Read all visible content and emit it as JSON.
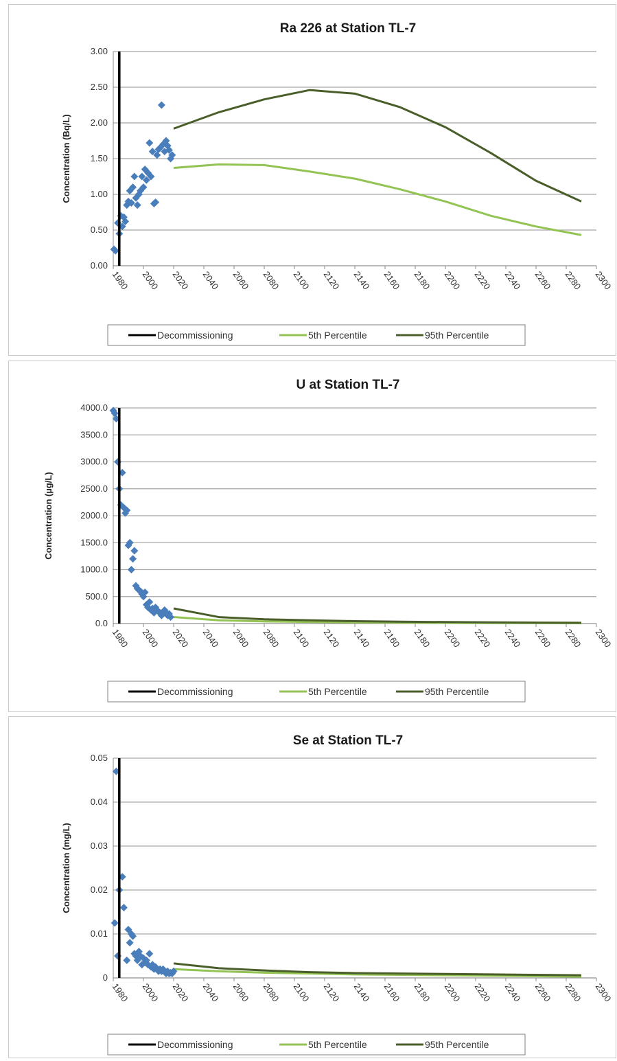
{
  "chart_data": [
    {
      "type": "scatter",
      "title": "Ra 226 at Station TL-7",
      "ylabel": "Concentration (Bq/L)",
      "xlabel": "",
      "xlim": [
        1980,
        2300
      ],
      "ylim": [
        0,
        3
      ],
      "x_ticks": [
        "1980",
        "2000",
        "2020",
        "2040",
        "2060",
        "2080",
        "2100",
        "2120",
        "2140",
        "2160",
        "2180",
        "2200",
        "2220",
        "2240",
        "2260",
        "2280",
        "2300"
      ],
      "y_ticks": [
        "0.00",
        "0.50",
        "1.00",
        "1.50",
        "2.00",
        "2.50",
        "3.00"
      ],
      "grid": true,
      "legend_position": "bottom",
      "decommissioning_year": 1984,
      "legend": [
        "Decommissioning",
        "5th Percentile",
        "95th Percentile"
      ],
      "series": [
        {
          "name": "Decommissioning",
          "type": "vline",
          "x": 1984,
          "color": "#000000"
        },
        {
          "name": "5th Percentile",
          "type": "line",
          "color": "#92c353",
          "x": [
            2020,
            2050,
            2080,
            2110,
            2140,
            2170,
            2200,
            2230,
            2260,
            2290
          ],
          "y": [
            1.37,
            1.42,
            1.41,
            1.32,
            1.22,
            1.07,
            0.9,
            0.7,
            0.55,
            0.43
          ]
        },
        {
          "name": "95th Percentile",
          "type": "line",
          "color": "#4a5e2a",
          "x": [
            2020,
            2050,
            2080,
            2110,
            2140,
            2170,
            2200,
            2230,
            2260,
            2290
          ],
          "y": [
            1.92,
            2.15,
            2.33,
            2.46,
            2.41,
            2.22,
            1.94,
            1.58,
            1.19,
            0.9
          ]
        },
        {
          "type": "scatter",
          "color": "#4a7ebb",
          "x": [
            1980.5,
            1981.5,
            1983,
            1984,
            1985,
            1986,
            1987,
            1988,
            1989,
            1990,
            1991,
            1992,
            1993,
            1994,
            1995,
            1996,
            1997,
            1998,
            1999,
            2000,
            2001,
            2002,
            2003,
            2004,
            2005,
            2006,
            2007,
            2008,
            2009,
            2010,
            2011,
            2012,
            2013,
            2014,
            2015,
            2016,
            2017,
            2018,
            2019
          ],
          "y": [
            0.23,
            0.21,
            0.6,
            0.45,
            0.7,
            0.55,
            0.68,
            0.62,
            0.85,
            0.9,
            1.05,
            0.88,
            1.1,
            1.25,
            0.95,
            0.85,
            1.0,
            1.05,
            1.25,
            1.1,
            1.35,
            1.2,
            1.3,
            1.72,
            1.25,
            1.6,
            0.87,
            0.89,
            1.55,
            1.63,
            1.65,
            2.25,
            1.7,
            1.6,
            1.75,
            1.68,
            1.62,
            1.5,
            1.55
          ]
        }
      ]
    },
    {
      "type": "scatter",
      "title": "U at Station TL-7",
      "ylabel": "Concentration (µg/L)",
      "xlabel": "",
      "xlim": [
        1980,
        2300
      ],
      "ylim": [
        0,
        4000
      ],
      "x_ticks": [
        "1980",
        "2000",
        "2020",
        "2040",
        "2060",
        "2080",
        "2100",
        "2120",
        "2140",
        "2160",
        "2180",
        "2200",
        "2220",
        "2240",
        "2260",
        "2280",
        "2300"
      ],
      "y_ticks": [
        "0.0",
        "500.0",
        "1000.0",
        "1500.0",
        "2000.0",
        "2500.0",
        "3000.0",
        "3500.0",
        "4000.0"
      ],
      "grid": true,
      "legend_position": "bottom",
      "decommissioning_year": 1984,
      "legend": [
        "Decommissioning",
        "5th Percentile",
        "95th Percentile"
      ],
      "series": [
        {
          "name": "Decommissioning",
          "type": "vline",
          "x": 1984,
          "color": "#000000"
        },
        {
          "name": "5th Percentile",
          "type": "line",
          "color": "#92c353",
          "x": [
            2020,
            2050,
            2080,
            2110,
            2140,
            2170,
            2200,
            2230,
            2260,
            2290
          ],
          "y": [
            120,
            60,
            40,
            30,
            22,
            17,
            13,
            10,
            8,
            6
          ]
        },
        {
          "name": "95th Percentile",
          "type": "line",
          "color": "#4a5e2a",
          "x": [
            2020,
            2050,
            2080,
            2110,
            2140,
            2170,
            2200,
            2230,
            2260,
            2290
          ],
          "y": [
            280,
            120,
            80,
            60,
            45,
            35,
            28,
            22,
            18,
            14
          ]
        },
        {
          "type": "scatter",
          "color": "#4a7ebb",
          "x": [
            1980,
            1981,
            1982,
            1983,
            1984,
            1985,
            1986,
            1987,
            1988,
            1989,
            1990,
            1991,
            1992,
            1993,
            1994,
            1995,
            1996,
            1997,
            1998,
            1999,
            2000,
            2001,
            2002,
            2003,
            2004,
            2005,
            2006,
            2007,
            2008,
            2009,
            2010,
            2011,
            2012,
            2013,
            2014,
            2015,
            2016,
            2017,
            2018
          ],
          "y": [
            3950,
            3900,
            3800,
            3000,
            2500,
            2200,
            2800,
            2150,
            2050,
            2100,
            1450,
            1500,
            1000,
            1200,
            1350,
            700,
            650,
            620,
            600,
            550,
            500,
            580,
            350,
            300,
            400,
            250,
            280,
            200,
            300,
            250,
            220,
            200,
            150,
            180,
            250,
            200,
            150,
            180,
            120
          ]
        }
      ]
    },
    {
      "type": "scatter",
      "title": "Se at Station TL-7",
      "ylabel": "Concentration (mg/L)",
      "xlabel": "",
      "xlim": [
        1980,
        2300
      ],
      "ylim": [
        0,
        0.05
      ],
      "x_ticks": [
        "1980",
        "2000",
        "2020",
        "2040",
        "2060",
        "2080",
        "2100",
        "2120",
        "2140",
        "2160",
        "2180",
        "2200",
        "2220",
        "2240",
        "2260",
        "2280",
        "2300"
      ],
      "y_ticks": [
        "0",
        "0.01",
        "0.02",
        "0.03",
        "0.04",
        "0.05"
      ],
      "grid": true,
      "legend_position": "bottom",
      "decommissioning_year": 1984,
      "legend": [
        "Decommissioning",
        "5th Percentile",
        "95th Percentile"
      ],
      "series": [
        {
          "name": "Decommissioning",
          "type": "vline",
          "x": 1984,
          "color": "#000000"
        },
        {
          "name": "5th Percentile",
          "type": "line",
          "color": "#92c353",
          "x": [
            2020,
            2050,
            2080,
            2110,
            2140,
            2170,
            2200,
            2230,
            2260,
            2290
          ],
          "y": [
            0.002,
            0.0015,
            0.0012,
            0.001,
            0.0008,
            0.0007,
            0.0006,
            0.0005,
            0.0004,
            0.0003
          ]
        },
        {
          "name": "95th Percentile",
          "type": "line",
          "color": "#4a5e2a",
          "x": [
            2020,
            2050,
            2080,
            2110,
            2140,
            2170,
            2200,
            2230,
            2260,
            2290
          ],
          "y": [
            0.0033,
            0.0022,
            0.0017,
            0.0013,
            0.0011,
            0.001,
            0.0009,
            0.0008,
            0.0007,
            0.0006
          ]
        },
        {
          "type": "scatter",
          "color": "#4a7ebb",
          "x": [
            1981,
            1982,
            1983,
            1984,
            1986,
            1987,
            1989,
            1990,
            1991,
            1992,
            1993,
            1994,
            1995,
            1996,
            1997,
            1998,
            1999,
            2000,
            2001,
            2002,
            2003,
            2004,
            2005,
            2006,
            2007,
            2008,
            2009,
            2010,
            2011,
            2012,
            2013,
            2014,
            2015,
            2016,
            2017,
            2018,
            2019,
            2020
          ],
          "y": [
            0.0125,
            0.047,
            0.005,
            0.02,
            0.023,
            0.016,
            0.004,
            0.011,
            0.008,
            0.01,
            0.0095,
            0.0055,
            0.005,
            0.004,
            0.006,
            0.005,
            0.003,
            0.0045,
            0.0035,
            0.004,
            0.003,
            0.0055,
            0.0025,
            0.003,
            0.002,
            0.0025,
            0.002,
            0.0015,
            0.002,
            0.0015,
            0.002,
            0.0015,
            0.001,
            0.0015,
            0.001,
            0.0012,
            0.001,
            0.0015
          ]
        }
      ]
    }
  ]
}
